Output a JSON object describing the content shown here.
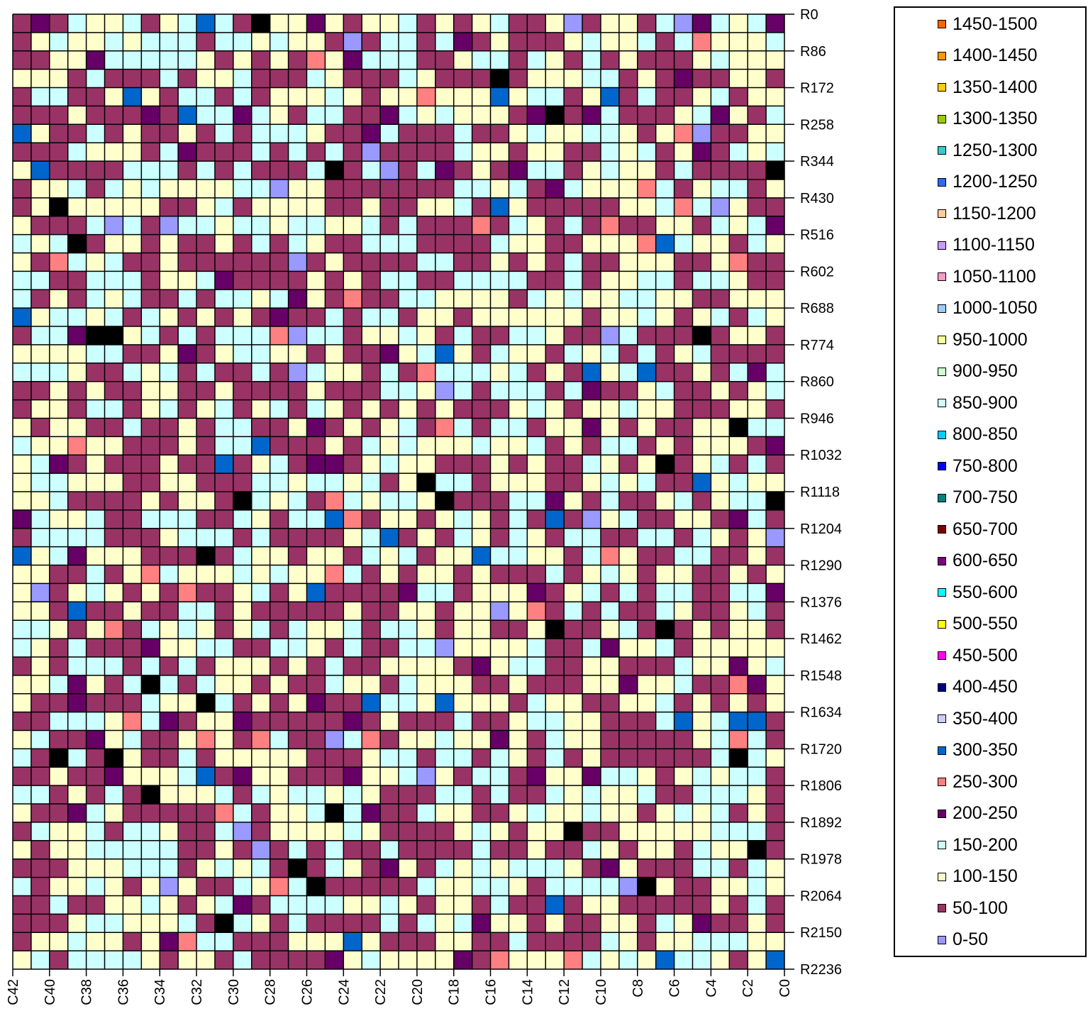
{
  "chart_data": {
    "type": "heatmap",
    "title": "",
    "xlabel": "",
    "ylabel": "",
    "grid": true,
    "legend_position": "right",
    "x_ticks": [
      "C42",
      "C40",
      "C38",
      "C36",
      "C34",
      "C32",
      "C30",
      "C28",
      "C26",
      "C24",
      "C22",
      "C20",
      "C18",
      "C16",
      "C14",
      "C12",
      "C10",
      "C8",
      "C6",
      "C4",
      "C2",
      "C0"
    ],
    "y_ticks": [
      "R0",
      "R86",
      "R172",
      "R258",
      "R344",
      "R430",
      "R516",
      "R602",
      "R688",
      "R774",
      "R860",
      "R946",
      "R1032",
      "R1118",
      "R1204",
      "R1290",
      "R1376",
      "R1462",
      "R1548",
      "R1634",
      "R1720",
      "R1806",
      "R1892",
      "R1978",
      "R2064",
      "R2150",
      "R2236"
    ],
    "legend": [
      {
        "label": "1450-1500",
        "color": "#ff6600"
      },
      {
        "label": "1400-1450",
        "color": "#ff9900"
      },
      {
        "label": "1350-1400",
        "color": "#ffcc00"
      },
      {
        "label": "1300-1350",
        "color": "#99cc00"
      },
      {
        "label": "1250-1300",
        "color": "#33cccc"
      },
      {
        "label": "1200-1250",
        "color": "#3366ff"
      },
      {
        "label": "1150-1200",
        "color": "#ffcc99"
      },
      {
        "label": "1100-1150",
        "color": "#cc99ff"
      },
      {
        "label": "1050-1100",
        "color": "#ff99cc"
      },
      {
        "label": "1000-1050",
        "color": "#99ccff"
      },
      {
        "label": "950-1000",
        "color": "#ffff99"
      },
      {
        "label": "900-950",
        "color": "#ccffcc"
      },
      {
        "label": "850-900",
        "color": "#ccffff"
      },
      {
        "label": "800-850",
        "color": "#00ccff"
      },
      {
        "label": "750-800",
        "color": "#0000ff"
      },
      {
        "label": "700-750",
        "color": "#008080"
      },
      {
        "label": "650-700",
        "color": "#800000"
      },
      {
        "label": "600-650",
        "color": "#800080"
      },
      {
        "label": "550-600",
        "color": "#00ffff"
      },
      {
        "label": "500-550",
        "color": "#ffff00"
      },
      {
        "label": "450-500",
        "color": "#ff00ff"
      },
      {
        "label": "400-450",
        "color": "#000080"
      },
      {
        "label": "350-400",
        "color": "#ccccff"
      },
      {
        "label": "300-350",
        "color": "#0066cc"
      },
      {
        "label": "250-300",
        "color": "#ff8080"
      },
      {
        "label": "200-250",
        "color": "#660066"
      },
      {
        "label": "150-200",
        "color": "#ccffff"
      },
      {
        "label": "100-150",
        "color": "#ffffcc"
      },
      {
        "label": "50-100",
        "color": "#993366"
      },
      {
        "label": "0-50",
        "color": "#9999ff"
      }
    ],
    "x_range": [
      42,
      0
    ],
    "y_range": [
      0,
      2236
    ],
    "grid_columns": 42,
    "grid_rows": 52
  }
}
